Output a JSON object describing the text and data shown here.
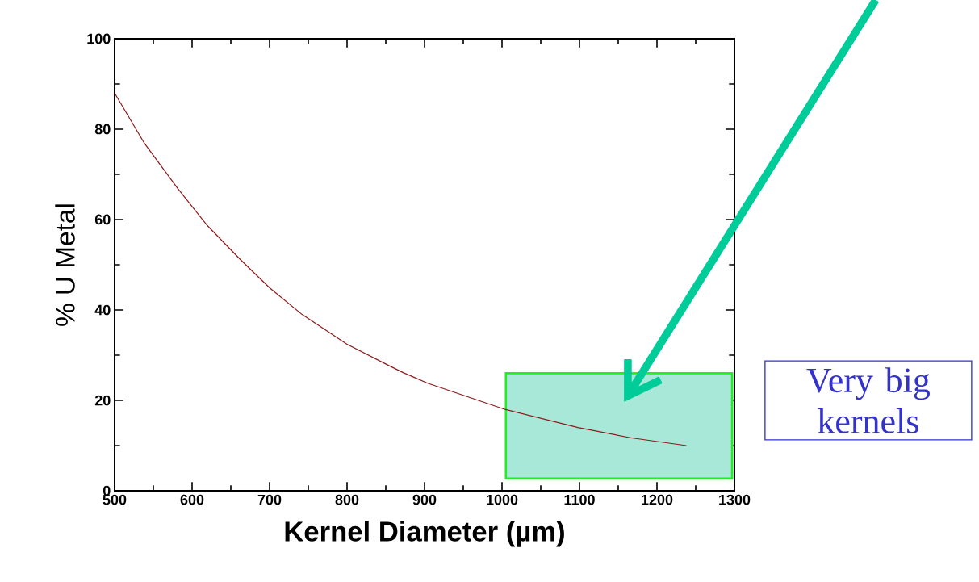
{
  "chart_data": {
    "type": "line",
    "xlabel": "Kernel Diameter (µm)",
    "ylabel": "% U Metal",
    "x": [
      500,
      538,
      581,
      619,
      662,
      700,
      742,
      800,
      854,
      873,
      904,
      1004,
      1098,
      1167,
      1238
    ],
    "values": [
      88,
      77,
      67,
      58.8,
      51.2,
      44.9,
      39,
      32.4,
      27.7,
      26.1,
      23.8,
      18,
      14,
      11.7,
      10
    ],
    "color": "#8b1a1a",
    "xlim": [
      500,
      1300
    ],
    "ylim": [
      0,
      100
    ],
    "xticks": [
      500,
      600,
      700,
      800,
      900,
      1000,
      1100,
      1200,
      1300
    ],
    "yticks": [
      0,
      20,
      40,
      60,
      80,
      100
    ],
    "bands": [
      {
        "axis": "x",
        "from": 1005,
        "to": 1297,
        "color": "#a8e8d8"
      }
    ],
    "annotations": [
      "Very big kernels"
    ],
    "marker": "none",
    "line_style": "solid"
  }
}
